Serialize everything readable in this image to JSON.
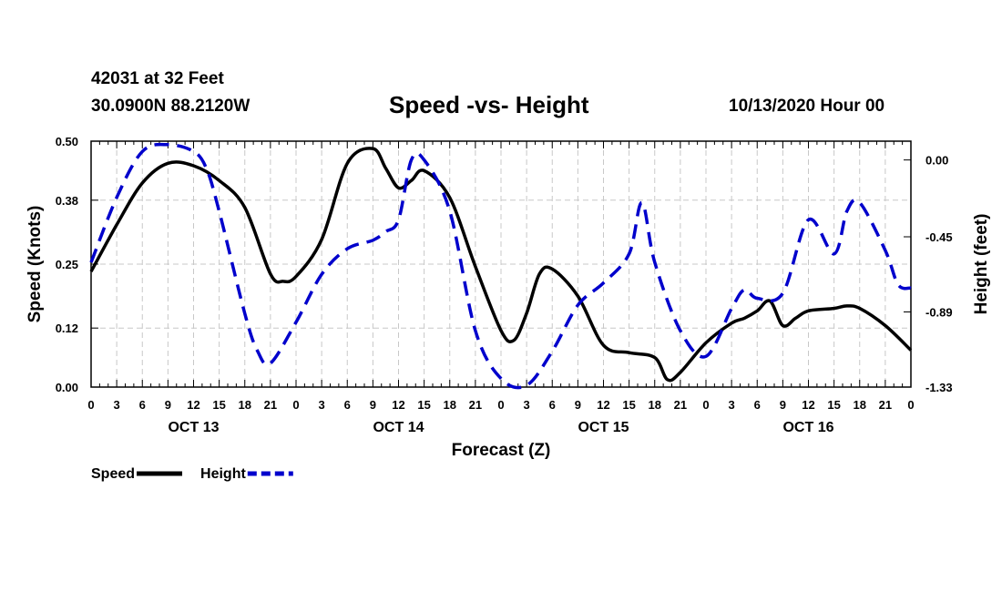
{
  "header": {
    "station": "42031 at 32 Feet",
    "coords": "30.0900N 88.2120W",
    "title": "Speed -vs- Height",
    "date": "10/13/2020 Hour 00"
  },
  "chart_data": {
    "type": "line",
    "title": "Speed -vs- Height",
    "xlabel": "Forecast (Z)",
    "ylabel_left": "Speed (Knots)",
    "ylabel_right": "Height (feet)",
    "x_unit": "forecast hour",
    "xlim": [
      0,
      96
    ],
    "ylim_left": [
      0,
      0.5
    ],
    "ylim_right": [
      -1.33,
      0.11
    ],
    "grid": true,
    "x_tick_hours": [
      0,
      3,
      6,
      9,
      12,
      15,
      18,
      21,
      24,
      27,
      30,
      33,
      36,
      39,
      42,
      45,
      48,
      51,
      54,
      57,
      60,
      63,
      66,
      69,
      72,
      75,
      78,
      81,
      84,
      87,
      90,
      93,
      96
    ],
    "x_tick_labels": [
      "0",
      "3",
      "6",
      "9",
      "12",
      "15",
      "18",
      "21",
      "0",
      "3",
      "6",
      "9",
      "12",
      "15",
      "18",
      "21",
      "0",
      "3",
      "6",
      "9",
      "12",
      "15",
      "18",
      "21",
      "0",
      "3",
      "6",
      "9",
      "12",
      "15",
      "18",
      "21",
      "0"
    ],
    "day_labels": [
      {
        "label": "OCT 13",
        "hour": 12
      },
      {
        "label": "OCT 14",
        "hour": 36
      },
      {
        "label": "OCT 15",
        "hour": 60
      },
      {
        "label": "OCT 16",
        "hour": 84
      }
    ],
    "y_left_ticks": [
      0.0,
      0.12,
      0.25,
      0.38,
      0.5
    ],
    "y_left_tick_labels": [
      "0.00",
      "0.12",
      "0.25",
      "0.38",
      "0.50"
    ],
    "y_right_ticks": [
      0.0,
      -0.45,
      -0.89,
      -1.33
    ],
    "y_right_tick_labels": [
      "0.00",
      "-0.45",
      "-0.89",
      "-1.33"
    ],
    "legend": [
      {
        "name": "Speed",
        "color": "#000000",
        "dash": "solid"
      },
      {
        "name": "Height",
        "color": "#0000cc",
        "dash": "dashed"
      }
    ],
    "series": [
      {
        "name": "Speed",
        "axis": "left",
        "unit": "knots",
        "color": "#000000",
        "x": [
          0,
          3,
          6,
          9,
          12,
          15,
          18,
          21,
          22.5,
          24,
          27,
          30,
          33,
          34.5,
          36,
          37.5,
          39,
          42,
          45,
          48,
          49.5,
          51,
          52.5,
          54,
          57,
          60,
          63,
          66,
          67.5,
          69,
          72,
          75,
          76.5,
          78,
          79.5,
          81,
          82.5,
          84,
          87,
          88.5,
          90,
          93,
          96
        ],
        "y": [
          0.235,
          0.33,
          0.415,
          0.455,
          0.45,
          0.42,
          0.365,
          0.23,
          0.215,
          0.225,
          0.3,
          0.455,
          0.485,
          0.445,
          0.405,
          0.42,
          0.44,
          0.385,
          0.245,
          0.115,
          0.095,
          0.15,
          0.23,
          0.24,
          0.185,
          0.085,
          0.07,
          0.06,
          0.015,
          0.03,
          0.09,
          0.13,
          0.14,
          0.155,
          0.175,
          0.125,
          0.14,
          0.155,
          0.16,
          0.165,
          0.16,
          0.125,
          0.075
        ]
      },
      {
        "name": "Height",
        "axis": "right",
        "unit": "feet",
        "color": "#0000cc",
        "x": [
          0,
          3,
          6,
          9,
          12,
          13.5,
          15,
          18,
          19.5,
          21,
          24,
          27,
          30,
          33,
          34.5,
          36,
          37.5,
          39,
          42,
          45,
          48,
          51,
          54,
          57,
          60,
          63,
          64.5,
          66,
          69,
          72,
          75,
          76.5,
          78,
          81,
          84,
          87,
          88.5,
          90,
          93,
          94.5,
          96
        ],
        "y": [
          -0.6,
          -0.22,
          0.05,
          0.09,
          0.05,
          -0.05,
          -0.3,
          -0.9,
          -1.12,
          -1.19,
          -0.95,
          -0.67,
          -0.52,
          -0.47,
          -0.42,
          -0.35,
          0.0,
          0.0,
          -0.3,
          -1.0,
          -1.28,
          -1.32,
          -1.12,
          -0.85,
          -0.72,
          -0.55,
          -0.25,
          -0.6,
          -1.0,
          -1.15,
          -0.87,
          -0.76,
          -0.81,
          -0.78,
          -0.35,
          -0.55,
          -0.3,
          -0.25,
          -0.53,
          -0.73,
          -0.75
        ]
      }
    ]
  }
}
